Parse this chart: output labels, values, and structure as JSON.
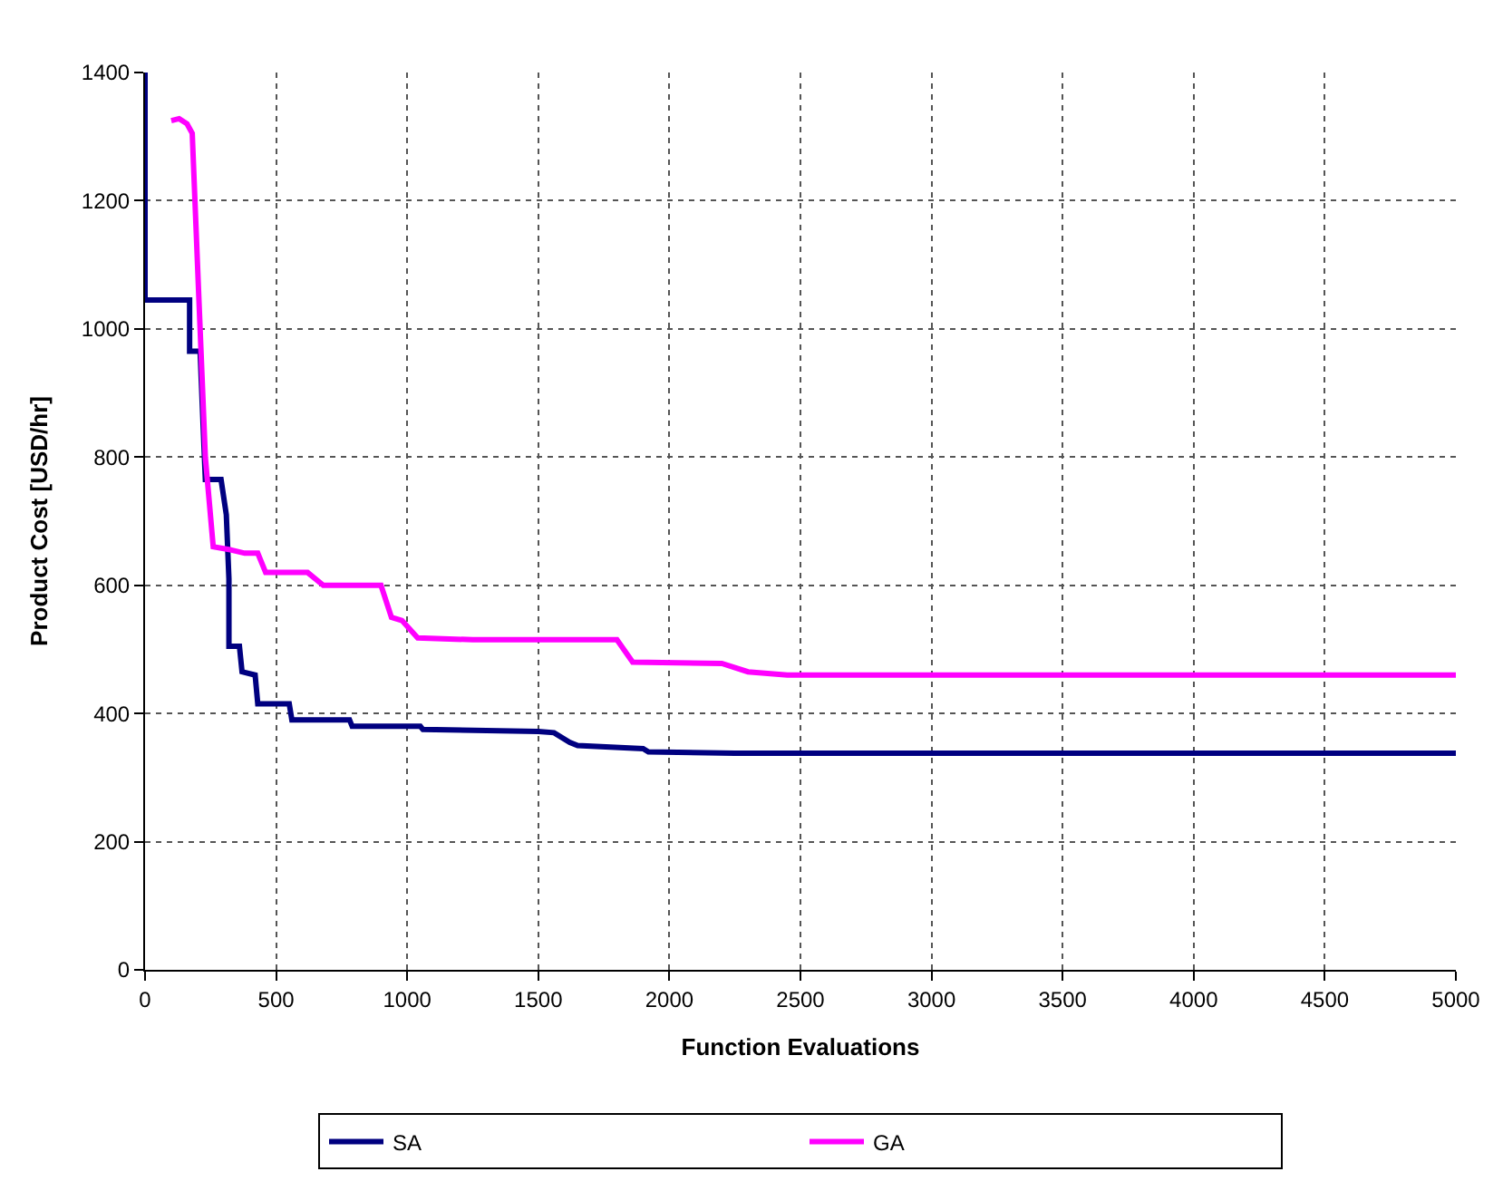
{
  "chart_data": {
    "type": "line",
    "xlabel": "Function Evaluations",
    "ylabel": "Product Cost [USD/hr]",
    "series": [
      {
        "name": "SA",
        "color": "#000080",
        "x": [
          0,
          0,
          170,
          170,
          210,
          230,
          290,
          310,
          320,
          320,
          360,
          370,
          420,
          430,
          550,
          560,
          780,
          790,
          1050,
          1060,
          1500,
          1560,
          1620,
          1650,
          1900,
          1920,
          2250,
          5000
        ],
        "values": [
          1400,
          1045,
          1045,
          965,
          965,
          765,
          765,
          710,
          610,
          505,
          505,
          465,
          460,
          415,
          415,
          390,
          390,
          380,
          380,
          375,
          372,
          370,
          355,
          350,
          345,
          340,
          338,
          338
        ]
      },
      {
        "name": "GA",
        "color": "#ff00ff",
        "x": [
          100,
          130,
          160,
          180,
          210,
          230,
          260,
          330,
          380,
          430,
          460,
          620,
          680,
          900,
          940,
          980,
          1040,
          1250,
          1800,
          1860,
          2200,
          2300,
          2450,
          5000
        ],
        "values": [
          1325,
          1328,
          1320,
          1305,
          1000,
          800,
          660,
          655,
          650,
          650,
          620,
          620,
          600,
          600,
          550,
          545,
          518,
          515,
          515,
          480,
          478,
          465,
          460,
          460
        ]
      }
    ],
    "xlim": [
      0,
      5000
    ],
    "xticks": [
      0,
      500,
      1000,
      1500,
      2000,
      2500,
      3000,
      3500,
      4000,
      4500,
      5000
    ],
    "ylim": [
      0,
      1400
    ],
    "yticks": [
      0,
      200,
      400,
      600,
      800,
      1000,
      1200,
      1400
    ],
    "grid": true,
    "legend": "bottom",
    "marker": "none",
    "line_style": "solid"
  }
}
